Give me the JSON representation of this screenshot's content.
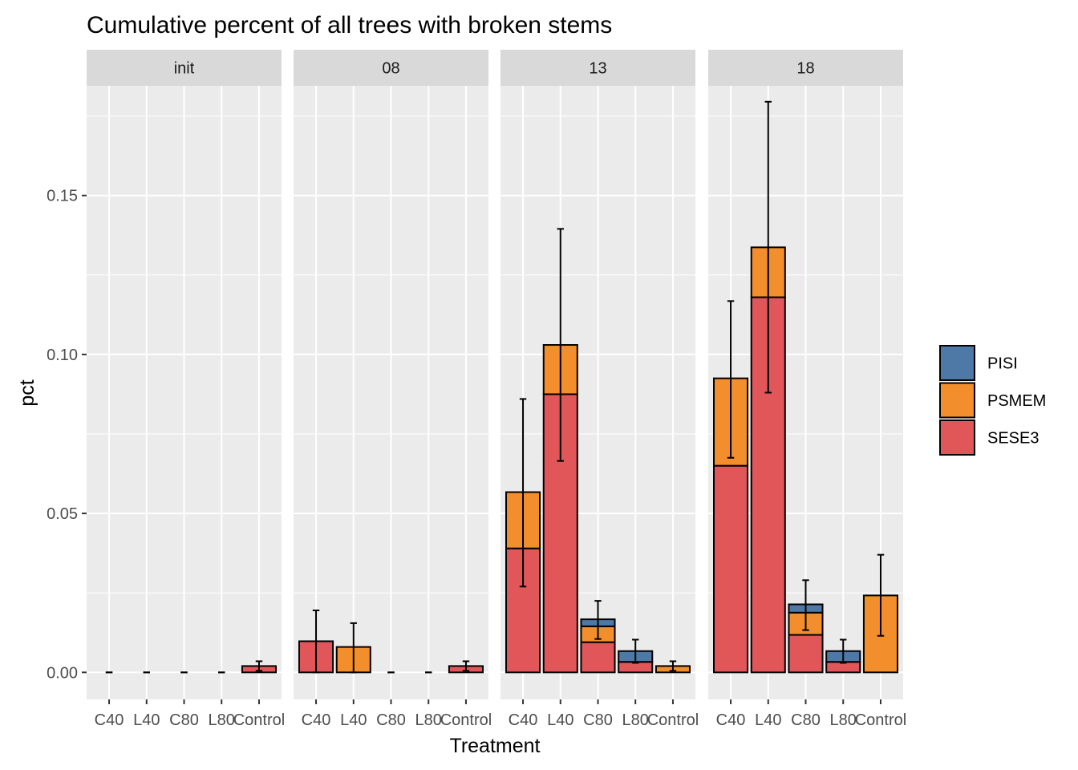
{
  "chart_data": {
    "type": "bar",
    "stacked": true,
    "title": "Cumulative percent of all trees with broken stems",
    "xlabel": "Treatment",
    "ylabel": "pct",
    "ylim": [
      -0.0085,
      0.1845
    ],
    "yticks": [
      0.0,
      0.05,
      0.1,
      0.15
    ],
    "ytick_labels": [
      "0.00",
      "0.05",
      "0.10",
      "0.15"
    ],
    "grid": true,
    "legend_position": "right",
    "categories": [
      "C40",
      "L40",
      "C80",
      "L80",
      "Control"
    ],
    "species": [
      {
        "name": "PISI",
        "color": "#4E79A7"
      },
      {
        "name": "PSMEM",
        "color": "#F28E2B"
      },
      {
        "name": "SESE3",
        "color": "#E15759"
      }
    ],
    "panels": [
      {
        "label": "init",
        "series": [
          {
            "name": "SESE3",
            "values": [
              0,
              0,
              0,
              0,
              0.002
            ]
          },
          {
            "name": "PSMEM",
            "values": [
              0,
              0,
              0,
              0,
              0
            ]
          },
          {
            "name": "PISI",
            "values": [
              0,
              0,
              0,
              0,
              0
            ]
          }
        ],
        "error_bars": [
          {
            "low": 0,
            "high": 0
          },
          {
            "low": 0,
            "high": 0
          },
          {
            "low": 0,
            "high": 0
          },
          {
            "low": 0,
            "high": 0
          },
          {
            "low": 0.0005,
            "high": 0.0035
          }
        ]
      },
      {
        "label": "08",
        "series": [
          {
            "name": "SESE3",
            "values": [
              0.0098,
              0,
              0,
              0,
              0.002
            ]
          },
          {
            "name": "PSMEM",
            "values": [
              0,
              0.008,
              0,
              0,
              0
            ]
          },
          {
            "name": "PISI",
            "values": [
              0,
              0,
              0,
              0,
              0
            ]
          }
        ],
        "error_bars": [
          {
            "low": 0.0,
            "high": 0.0195
          },
          {
            "low": 0.0,
            "high": 0.0155
          },
          {
            "low": 0,
            "high": 0
          },
          {
            "low": 0,
            "high": 0
          },
          {
            "low": 0.0005,
            "high": 0.0035
          }
        ]
      },
      {
        "label": "13",
        "series": [
          {
            "name": "SESE3",
            "values": [
              0.039,
              0.0875,
              0.0095,
              0.0033,
              0
            ]
          },
          {
            "name": "PSMEM",
            "values": [
              0.0177,
              0.0155,
              0.005,
              0,
              0.002
            ]
          },
          {
            "name": "PISI",
            "values": [
              0,
              0,
              0.0022,
              0.0034,
              0
            ]
          }
        ],
        "error_bars": [
          {
            "low": 0.027,
            "high": 0.086
          },
          {
            "low": 0.0665,
            "high": 0.1395
          },
          {
            "low": 0.0105,
            "high": 0.0225
          },
          {
            "low": 0.003,
            "high": 0.0103
          },
          {
            "low": 0.0005,
            "high": 0.0035
          }
        ]
      },
      {
        "label": "18",
        "series": [
          {
            "name": "SESE3",
            "values": [
              0.065,
              0.118,
              0.0118,
              0.0033,
              0
            ]
          },
          {
            "name": "PSMEM",
            "values": [
              0.0275,
              0.0157,
              0.007,
              0,
              0.0242
            ]
          },
          {
            "name": "PISI",
            "values": [
              0,
              0,
              0.0026,
              0.0034,
              0
            ]
          }
        ],
        "error_bars": [
          {
            "low": 0.0675,
            "high": 0.1168
          },
          {
            "low": 0.088,
            "high": 0.1795
          },
          {
            "low": 0.0133,
            "high": 0.029
          },
          {
            "low": 0.003,
            "high": 0.0103
          },
          {
            "low": 0.0115,
            "high": 0.037
          }
        ]
      }
    ]
  }
}
